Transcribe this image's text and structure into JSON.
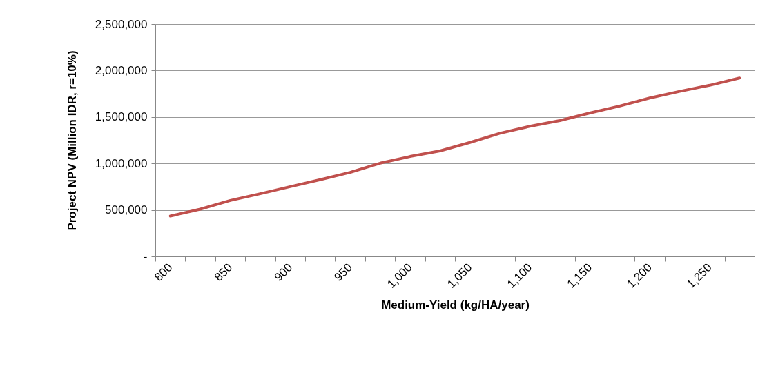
{
  "chart_data": {
    "type": "line",
    "xlabel": "Medium-Yield (kg/HA/year)",
    "ylabel": "Project NPV (Million IDR, r=10%)",
    "categories": [
      "800",
      null,
      "850",
      null,
      "900",
      null,
      "950",
      null,
      "1,000",
      null,
      "1,050",
      null,
      "1,100",
      null,
      "1,150",
      null,
      "1,200",
      null,
      "1,250",
      null
    ],
    "series": [
      {
        "color": "#c0504d",
        "values": [
          434000,
          508000,
          602000,
          674000,
          750000,
          825000,
          904000,
          1003000,
          1075000,
          1135000,
          1226000,
          1325000,
          1400000,
          1461000,
          1543000,
          1618000,
          1704000,
          1776000,
          1841000,
          1920000
        ]
      }
    ],
    "ylim": [
      0,
      2500000
    ],
    "yticks": [
      {
        "value": 0,
        "label": "-"
      },
      {
        "value": 500000,
        "label": "500,000"
      },
      {
        "value": 1000000,
        "label": "1,000,000"
      },
      {
        "value": 1500000,
        "label": "1,500,000"
      },
      {
        "value": 2000000,
        "label": "2,000,000"
      },
      {
        "value": 2500000,
        "label": "2,500,000"
      }
    ],
    "grid": "y",
    "legend": false,
    "line_style": "solid"
  }
}
